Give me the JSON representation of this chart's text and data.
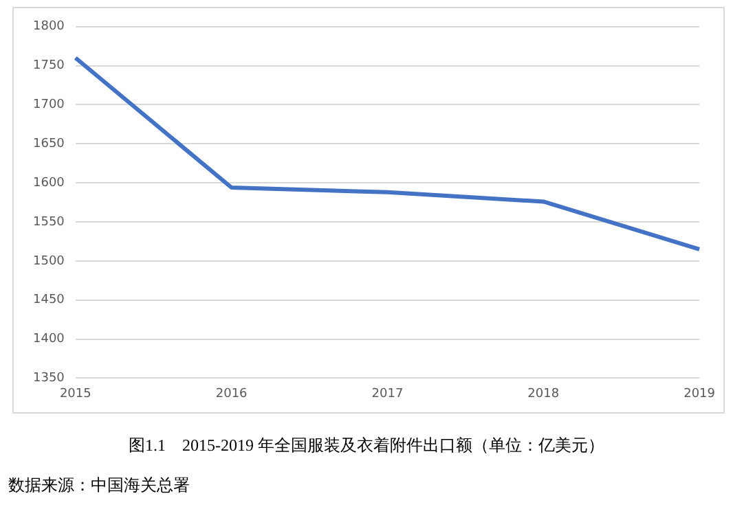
{
  "chart_data": {
    "type": "line",
    "categories": [
      "2015",
      "2016",
      "2017",
      "2018",
      "2019"
    ],
    "series": [
      {
        "color": "#4472c4",
        "values": [
          1760,
          1594,
          1588,
          1576,
          1515
        ]
      }
    ],
    "ylim": [
      1350,
      1800
    ],
    "yticks": [
      1350,
      1400,
      1450,
      1500,
      1550,
      1600,
      1650,
      1700,
      1750,
      1800
    ],
    "grid": "y",
    "legend": false,
    "marker": "none",
    "line_style": "solid",
    "annotations": [
      "图1.1　2015-2019 年全国服装及衣着附件出口额（单位：亿美元）",
      "数据来源：中国海关总署"
    ]
  }
}
